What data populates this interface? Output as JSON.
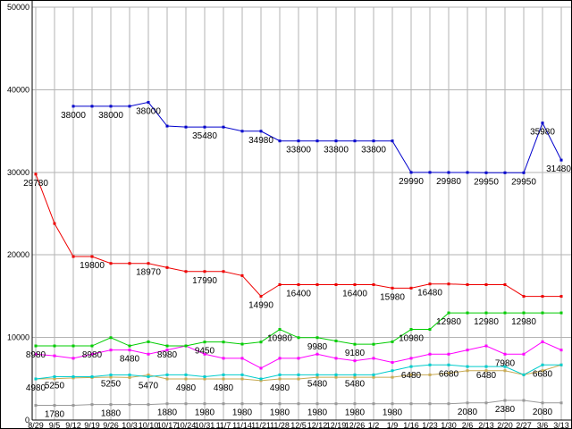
{
  "theme": {
    "background": "#ffffff",
    "grid": "#b3b3b3",
    "axis": "#000000",
    "text": "#000000"
  },
  "chart_data": {
    "type": "line",
    "title": "",
    "xlabel": "",
    "ylabel": "",
    "grid": true,
    "legend": "none",
    "ylim": [
      0,
      50000
    ],
    "y_ticks": [
      0,
      10000,
      20000,
      30000,
      40000,
      50000
    ],
    "y_tick_labels": [
      "0",
      "10000",
      "20000",
      "30000",
      "40000",
      "50000"
    ],
    "x_tick_labels": [
      "8/29",
      "9/5",
      "9/12",
      "9/19",
      "9/26",
      "10/3",
      "10/10",
      "10/17",
      "10/24",
      "10/31",
      "11/7",
      "11/14",
      "11/21",
      "11/28",
      "12/5",
      "12/12",
      "12/19",
      "12/26",
      "1/2",
      "1/9",
      "1/16",
      "1/23",
      "1/30",
      "2/6",
      "2/13",
      "2/20",
      "2/27",
      "3/6",
      "3/13"
    ],
    "series": [
      {
        "name": "series-gray",
        "color": "#999999",
        "values": [
          1780,
          1780,
          1780,
          1880,
          1880,
          1880,
          1880,
          1980,
          1980,
          1980,
          1980,
          1980,
          1980,
          1980,
          1980,
          1980,
          1980,
          1980,
          1980,
          1980,
          1980,
          1980,
          1980,
          2080,
          2080,
          2380,
          2380,
          2080,
          2080
        ],
        "point_labels": {
          "1": "1780",
          "4": "1880",
          "7": "1880",
          "9": "1980",
          "11": "1980",
          "13": "1980",
          "15": "1980",
          "17": "1980",
          "19": "1980",
          "23": "2080",
          "25": "2380",
          "27": "2080"
        }
      },
      {
        "name": "series-tan",
        "color": "#c8aa55",
        "values": [
          4980,
          5000,
          5100,
          5150,
          5200,
          5150,
          5470,
          4980,
          4980,
          4980,
          4980,
          4980,
          4780,
          4980,
          4980,
          5180,
          5180,
          5180,
          5180,
          5180,
          5480,
          5480,
          5680,
          5980,
          5980,
          5980,
          5480,
          5980,
          6680
        ],
        "point_labels": {
          "0": "4980",
          "8": "4980",
          "10": "4980",
          "13": "4980"
        }
      },
      {
        "name": "series-cyan",
        "color": "#00cccc",
        "values": [
          4980,
          5250,
          5250,
          5250,
          5470,
          5470,
          5250,
          5480,
          5480,
          5250,
          5480,
          5480,
          4980,
          5480,
          5480,
          5480,
          5480,
          5480,
          5480,
          5980,
          6480,
          6680,
          6680,
          6480,
          6480,
          6480,
          5480,
          6680,
          6680
        ],
        "point_labels": {
          "1": "5250",
          "4": "5250",
          "6": "5470",
          "15": "5480",
          "17": "5480",
          "20": "6480",
          "22": "6680",
          "24": "6480",
          "27": "6680"
        }
      },
      {
        "name": "series-magenta",
        "color": "#ff00ff",
        "values": [
          7980,
          7780,
          7480,
          7980,
          8480,
          8480,
          7980,
          8480,
          8980,
          7980,
          7480,
          7480,
          6280,
          7480,
          7480,
          7980,
          7480,
          7180,
          7480,
          6980,
          7480,
          7980,
          7980,
          8480,
          8980,
          7980,
          7980,
          9480,
          8480
        ],
        "point_labels": {
          "5": "8480",
          "25": "7980"
        }
      },
      {
        "name": "series-green",
        "color": "#00cc00",
        "values": [
          8980,
          8980,
          8980,
          8980,
          9980,
          8980,
          9480,
          8980,
          8980,
          9450,
          9450,
          9200,
          9450,
          10980,
          9980,
          9980,
          9580,
          9180,
          9180,
          9480,
          10980,
          10980,
          12980,
          12980,
          12980,
          12980,
          12980,
          12980,
          12980
        ],
        "point_labels": {
          "0": "8980",
          "3": "8980",
          "7": "8980",
          "9": "9450",
          "13": "10980",
          "15": "9980",
          "17": "9180",
          "20": "10980",
          "22": "12980",
          "24": "12980",
          "26": "12980"
        }
      },
      {
        "name": "series-red",
        "color": "#ee0000",
        "values": [
          29780,
          23800,
          19800,
          19800,
          18970,
          18970,
          18970,
          18470,
          17990,
          17990,
          17990,
          17490,
          14990,
          16400,
          16400,
          16400,
          16400,
          16400,
          16400,
          15980,
          15980,
          16480,
          16480,
          16400,
          16400,
          16400,
          14980,
          14980,
          14980
        ],
        "point_labels": {
          "0": "29780",
          "3": "19800",
          "6": "18970",
          "9": "17990",
          "12": "14990",
          "14": "16400",
          "17": "16400",
          "19": "15980",
          "21": "16480"
        }
      },
      {
        "name": "series-blue",
        "color": "#0000cc",
        "values": [
          null,
          null,
          38000,
          38000,
          38000,
          38000,
          38480,
          35600,
          35480,
          35480,
          35480,
          34980,
          34980,
          33800,
          33800,
          33800,
          33800,
          33800,
          33800,
          33800,
          29990,
          29990,
          29980,
          29980,
          29950,
          29950,
          29950,
          35980,
          31480
        ],
        "point_labels": {
          "2": "38000",
          "4": "38000",
          "6": "38000",
          "9": "35480",
          "12": "34980",
          "14": "33800",
          "16": "33800",
          "18": "33800",
          "20": "29990",
          "22": "29980",
          "24": "29950",
          "26": "29950",
          "27": "35980",
          "28": "31480"
        }
      }
    ]
  }
}
